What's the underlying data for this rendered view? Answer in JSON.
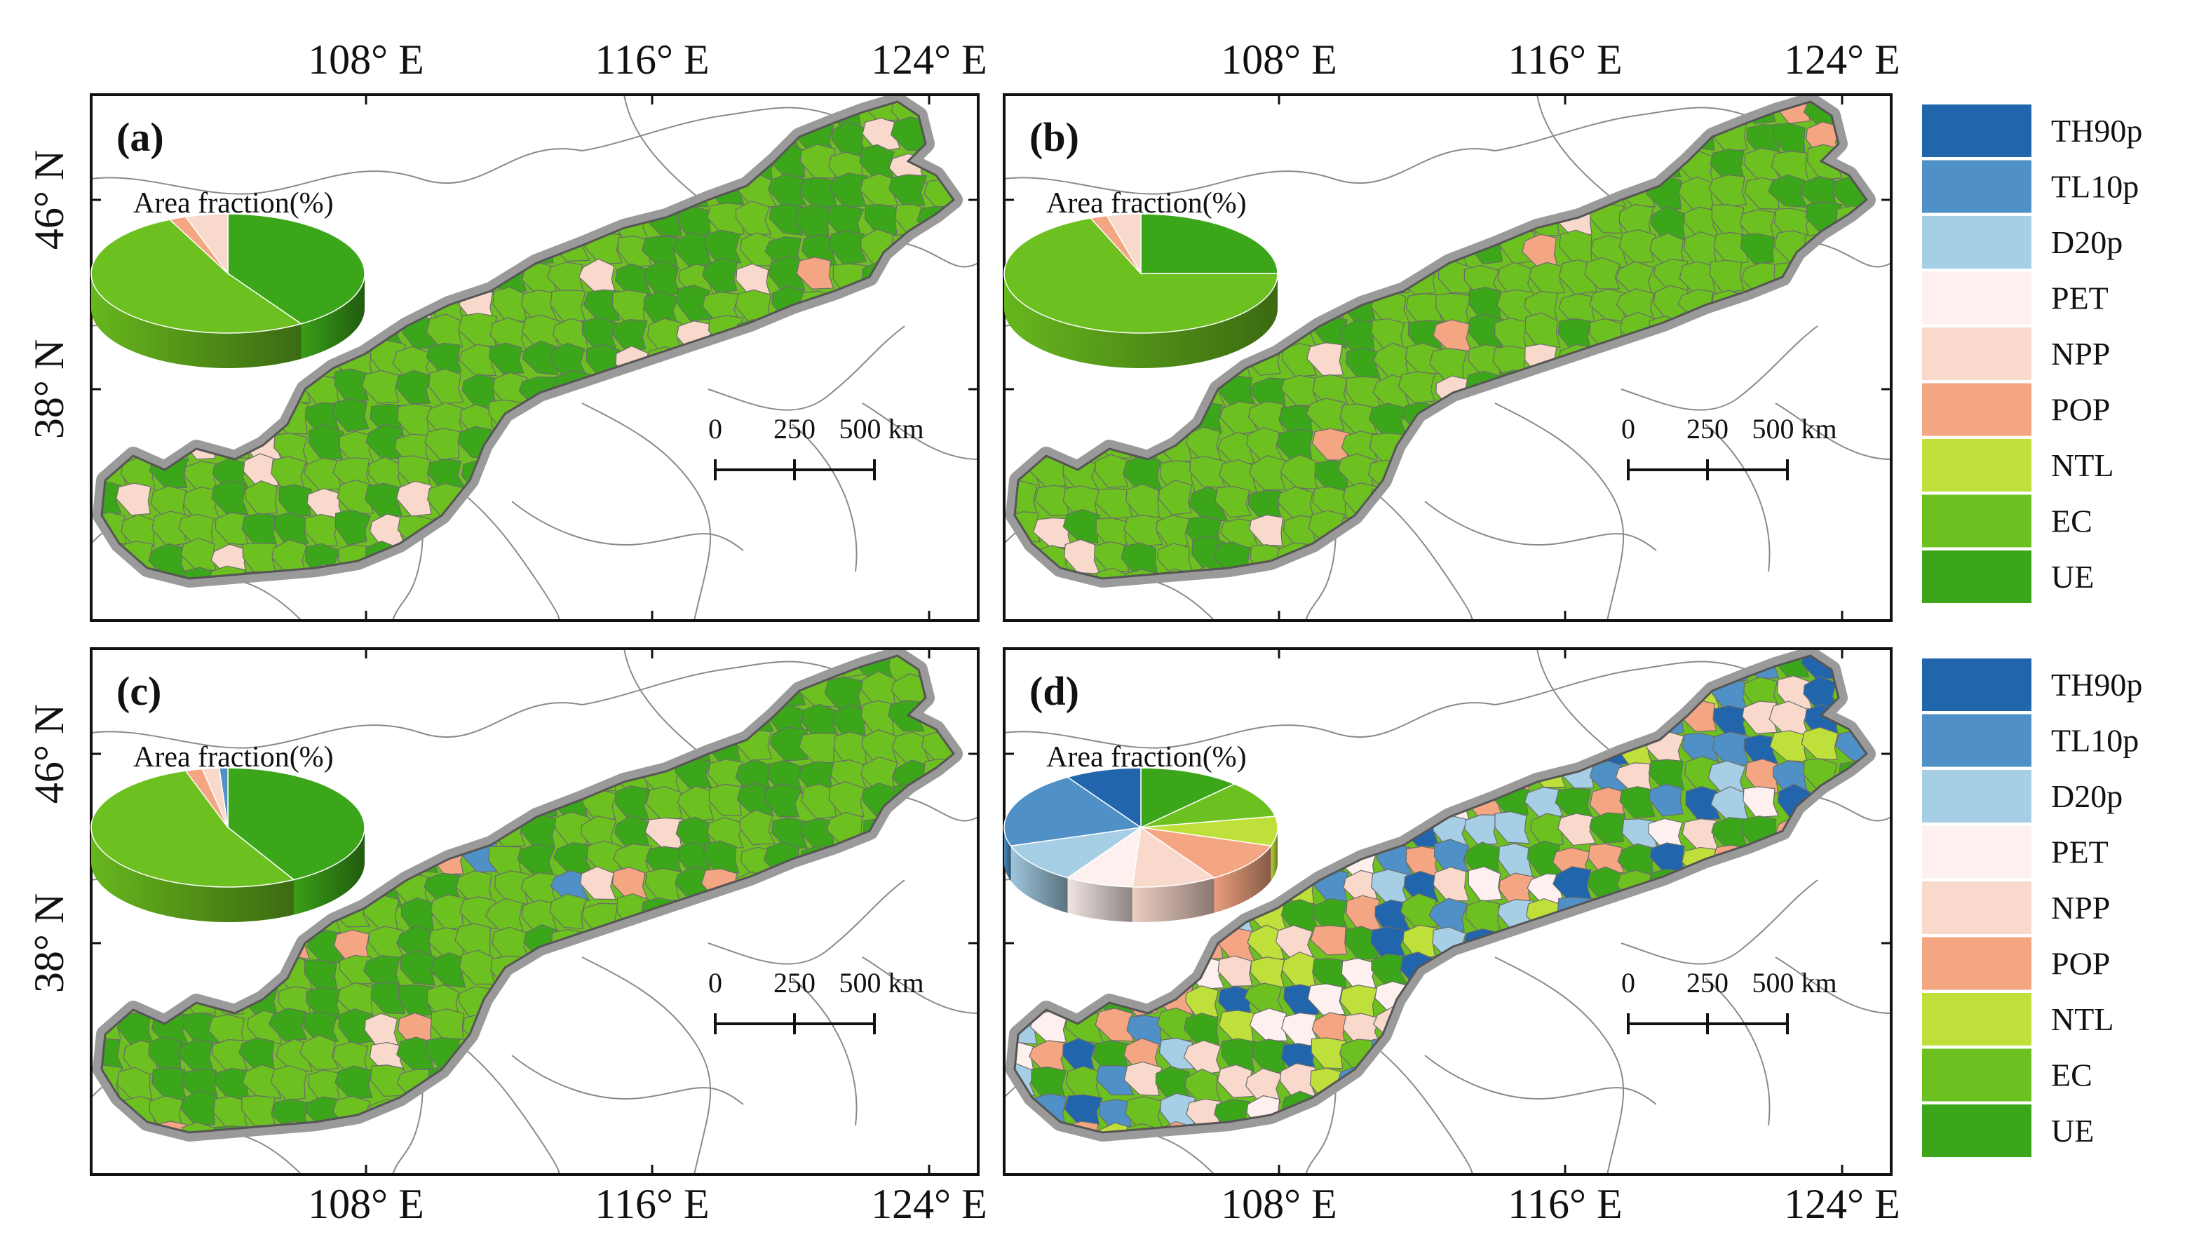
{
  "legend_classes": [
    {
      "label": "TH90p",
      "color": "#2166ac"
    },
    {
      "label": "TL10p",
      "color": "#4f90c6"
    },
    {
      "label": "D20p",
      "color": "#a6cfe6"
    },
    {
      "label": "PET",
      "color": "#fdf0ee"
    },
    {
      "label": "NPP",
      "color": "#f9d9cc"
    },
    {
      "label": "POP",
      "color": "#f4a582"
    },
    {
      "label": "NTL",
      "color": "#bfe03a"
    },
    {
      "label": "EC",
      "color": "#6cc01f"
    },
    {
      "label": "UE",
      "color": "#3ca61a"
    }
  ],
  "lon_ticks": [
    "108° E",
    "116° E",
    "124° E"
  ],
  "lat_ticks": [
    "46° N",
    "38° N"
  ],
  "panels": [
    {
      "label": "(a)",
      "pie_title": "Area fraction(%)",
      "lon_top": true,
      "lon_bottom": false,
      "lat_left": true,
      "area_fraction": {
        "UE": 41,
        "EC": 52,
        "POP": 2,
        "NPP": 5
      }
    },
    {
      "label": "(b)",
      "pie_title": "Area fraction(%)",
      "lon_top": true,
      "lon_bottom": false,
      "lat_left": false,
      "area_fraction": {
        "UE": 25,
        "EC": 69,
        "POP": 2,
        "NPP": 4
      }
    },
    {
      "label": "(c)",
      "pie_title": "Area fraction(%)",
      "lon_top": false,
      "lon_bottom": true,
      "lat_left": true,
      "area_fraction": {
        "UE": 42,
        "EC": 53,
        "POP": 2,
        "NPP": 2,
        "TL10p": 1
      }
    },
    {
      "label": "(d)",
      "pie_title": "Area fraction(%)",
      "lon_top": false,
      "lon_bottom": true,
      "lat_left": false,
      "area_fraction": {
        "UE": 12,
        "EC": 10,
        "NTL": 8,
        "POP": 11,
        "NPP": 10,
        "PET": 8,
        "D20p": 11,
        "TL10p": 21,
        "TH90p": 9
      }
    }
  ],
  "scale_bar": {
    "labels": [
      "0",
      "250",
      "500 km"
    ]
  },
  "legends_shown": 2
}
